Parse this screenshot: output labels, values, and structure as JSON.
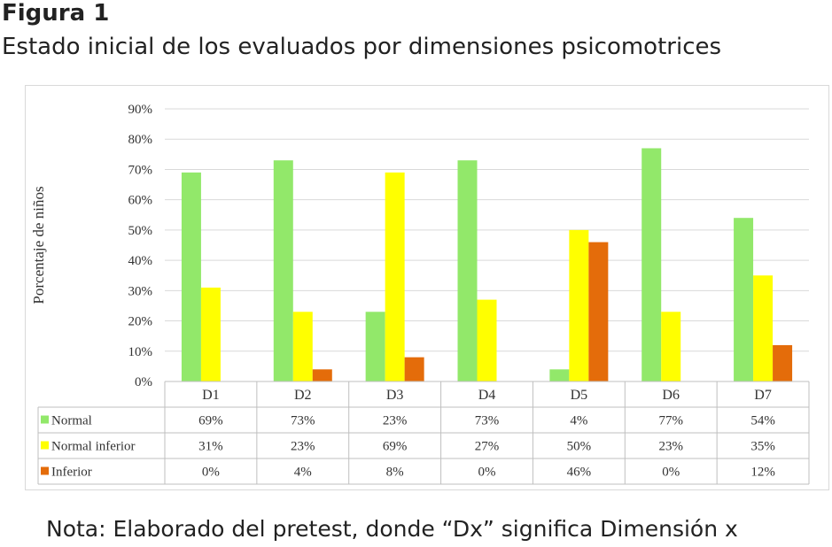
{
  "figure_label": "Figura 1",
  "figure_title": "Estado inicial de los evaluados por dimensiones psicomotrices",
  "note": "Nota: Elaborado del pretest, donde “Dx” significa Dimensión x",
  "chart_data": {
    "type": "bar",
    "title": "",
    "xlabel": "",
    "ylabel": "Porcentaje de niños",
    "ylim": [
      0,
      90
    ],
    "yticks": [
      "0%",
      "10%",
      "20%",
      "30%",
      "40%",
      "50%",
      "60%",
      "70%",
      "80%",
      "90%"
    ],
    "categories": [
      "D1",
      "D2",
      "D3",
      "D4",
      "D5",
      "D6",
      "D7"
    ],
    "series": [
      {
        "name": "Normal",
        "color": "#92e86a",
        "values": [
          69,
          73,
          23,
          73,
          4,
          77,
          54
        ],
        "labels": [
          "69%",
          "73%",
          "23%",
          "73%",
          "4%",
          "77%",
          "54%"
        ]
      },
      {
        "name": "Normal inferior",
        "color": "#ffff00",
        "values": [
          31,
          23,
          69,
          27,
          50,
          23,
          35
        ],
        "labels": [
          "31%",
          "23%",
          "69%",
          "27%",
          "50%",
          "23%",
          "35%"
        ]
      },
      {
        "name": "Inferior",
        "color": "#e46c0a",
        "values": [
          0,
          4,
          8,
          0,
          46,
          0,
          12
        ],
        "labels": [
          "0%",
          "4%",
          "8%",
          "0%",
          "46%",
          "0%",
          "12%"
        ]
      }
    ],
    "grid": true,
    "legend": "data-table"
  }
}
